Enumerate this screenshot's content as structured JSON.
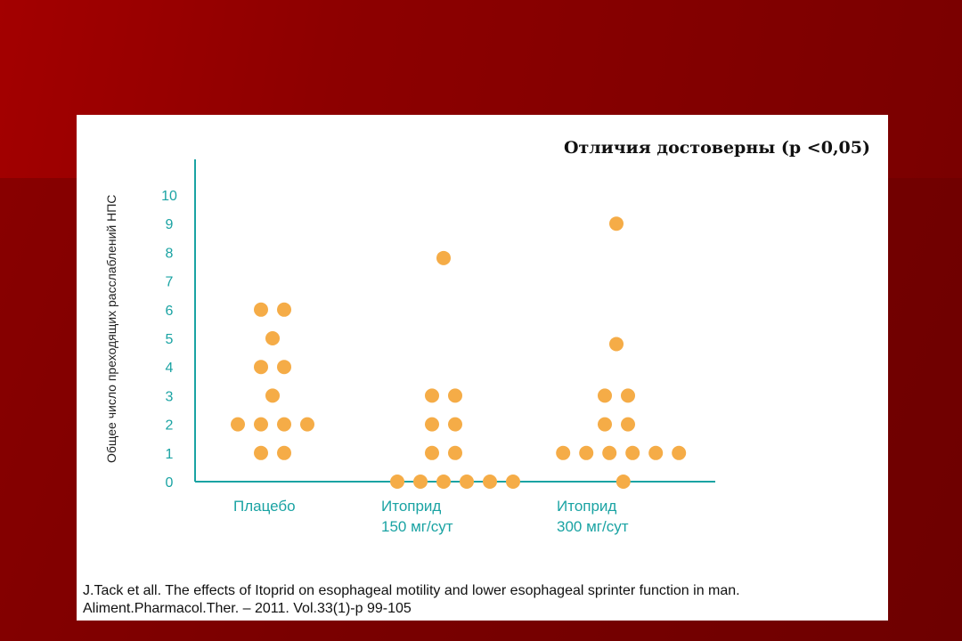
{
  "slide": {
    "significance_note": "Отличия достоверны (p <0,05)",
    "citation_line1": "J.Tack  et  all. The effects of Itoprid on esophageal motility and lower esophageal sprinter function in man.",
    "citation_line2": "Aliment.Pharmacol.Ther. – 2011. Vol.33(1)-p 99-105"
  },
  "chart_data": {
    "type": "scatter",
    "ylabel": "Общее число преходящих расслаблений НПС",
    "yticks": [
      0,
      1,
      2,
      3,
      4,
      5,
      6,
      7,
      8,
      9,
      10
    ],
    "ylim": [
      0,
      11
    ],
    "grid": false,
    "colors": {
      "point": "#F5AC47",
      "axis": "#1AA3A3",
      "label": "#1AA3A3"
    },
    "groups": [
      {
        "label_lines": [
          "Плацебо"
        ],
        "points": [
          {
            "y": 6,
            "offset": -0.5
          },
          {
            "y": 6,
            "offset": 0.5
          },
          {
            "y": 5,
            "offset": 0
          },
          {
            "y": 4,
            "offset": -0.5
          },
          {
            "y": 4,
            "offset": 0.5
          },
          {
            "y": 3,
            "offset": 0
          },
          {
            "y": 2,
            "offset": -1.5
          },
          {
            "y": 2,
            "offset": -0.5
          },
          {
            "y": 2,
            "offset": 0.5
          },
          {
            "y": 2,
            "offset": 1.5
          },
          {
            "y": 1,
            "offset": -0.5
          },
          {
            "y": 1,
            "offset": 0.5
          }
        ]
      },
      {
        "label_lines": [
          "Итоприд",
          "150 мг/сут"
        ],
        "points": [
          {
            "y": 7.8,
            "offset": 0
          },
          {
            "y": 3,
            "offset": -0.5
          },
          {
            "y": 3,
            "offset": 0.5
          },
          {
            "y": 2,
            "offset": -0.5
          },
          {
            "y": 2,
            "offset": 0.5
          },
          {
            "y": 1,
            "offset": -0.5
          },
          {
            "y": 1,
            "offset": 0.5
          },
          {
            "y": 0,
            "offset": -2
          },
          {
            "y": 0,
            "offset": -1
          },
          {
            "y": 0,
            "offset": 0
          },
          {
            "y": 0,
            "offset": 1
          },
          {
            "y": 0,
            "offset": 2
          },
          {
            "y": 0,
            "offset": 3
          }
        ]
      },
      {
        "label_lines": [
          "Итоприд",
          "300 мг/сут"
        ],
        "points": [
          {
            "y": 9,
            "offset": 0
          },
          {
            "y": 4.8,
            "offset": 0
          },
          {
            "y": 3,
            "offset": -0.5
          },
          {
            "y": 3,
            "offset": 0.5
          },
          {
            "y": 2,
            "offset": -0.5
          },
          {
            "y": 2,
            "offset": 0.5
          },
          {
            "y": 1,
            "offset": -2.3
          },
          {
            "y": 1,
            "offset": -1.3
          },
          {
            "y": 1,
            "offset": -0.3
          },
          {
            "y": 1,
            "offset": 0.7
          },
          {
            "y": 1,
            "offset": 1.7
          },
          {
            "y": 1,
            "offset": 2.7
          },
          {
            "y": 0,
            "offset": 0.3
          }
        ]
      }
    ]
  }
}
